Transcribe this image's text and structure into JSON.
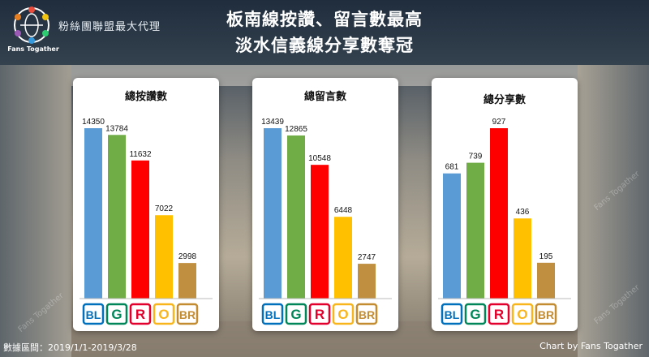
{
  "header": {
    "org_name": "粉絲團聯盟最大代理",
    "logo_caption": "Fans Togather",
    "title_line1": "板南線按讚、留言數最高",
    "title_line2": "淡水信義線分享數奪冠"
  },
  "footer": {
    "date_range": "數據區間：2019/1/1-2019/3/28",
    "credit": "Chart by Fans Togather"
  },
  "watermark": "Fans Togather",
  "colors": {
    "BL": "#5b9bd5",
    "G": "#70ad47",
    "R": "#ff0000",
    "O": "#ffc000",
    "BR": "#c09040"
  },
  "line_badges": [
    {
      "code": "BL",
      "color": "#0070bd"
    },
    {
      "code": "G",
      "color": "#008659"
    },
    {
      "code": "R",
      "color": "#e3002c"
    },
    {
      "code": "O",
      "color": "#f8b61c"
    },
    {
      "code": "BR",
      "color": "#c48c31"
    }
  ],
  "chart_data": [
    {
      "type": "bar",
      "title": "總按讚數",
      "categories": [
        "BL",
        "G",
        "R",
        "O",
        "BR"
      ],
      "values": [
        14350,
        13784,
        11632,
        7022,
        2998
      ]
    },
    {
      "type": "bar",
      "title": "總留言數",
      "categories": [
        "BL",
        "G",
        "R",
        "O",
        "BR"
      ],
      "values": [
        13439,
        12865,
        10548,
        6448,
        2747
      ]
    },
    {
      "type": "bar",
      "title": "總分享數",
      "categories": [
        "BL",
        "G",
        "R",
        "O",
        "BR"
      ],
      "values": [
        681,
        739,
        927,
        436,
        195
      ]
    }
  ]
}
